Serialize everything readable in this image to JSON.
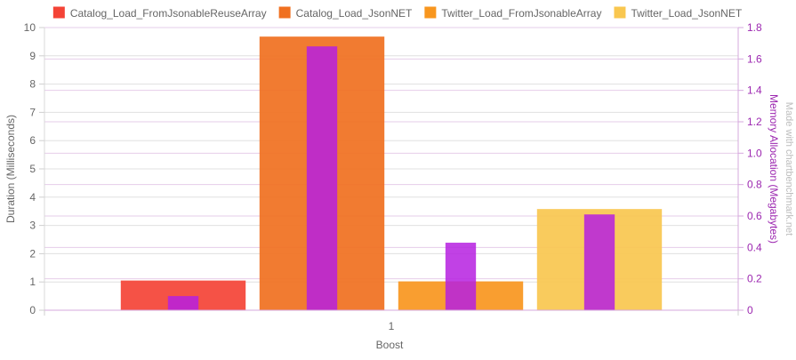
{
  "chart_data": {
    "type": "bar",
    "categories": [
      "1"
    ],
    "xlabel": "Boost",
    "ylabel": "Duration (Milliseconds)",
    "ylabel_right": "Memory Allocation (Megabytes)",
    "ylim": [
      0,
      10
    ],
    "ylim_right": [
      0,
      1.8
    ],
    "y_ticks": [
      "0",
      "1",
      "2",
      "3",
      "4",
      "5",
      "6",
      "7",
      "8",
      "9",
      "10"
    ],
    "y_ticks_right": [
      "0",
      "0.2",
      "0.4",
      "0.6",
      "0.8",
      "1.0",
      "1.2",
      "1.4",
      "1.6",
      "1.8"
    ],
    "legend_position": "top",
    "grid": true,
    "series": [
      {
        "name": "Catalog_Load_FromJsonableReuseArray",
        "color": "#f44336",
        "duration": [
          1.05
        ],
        "memory": [
          0.09
        ]
      },
      {
        "name": "Catalog_Load_JsonNET",
        "color": "#f07020",
        "duration": [
          9.68
        ],
        "memory": [
          1.68
        ]
      },
      {
        "name": "Twitter_Load_FromJsonableArray",
        "color": "#f8961e",
        "duration": [
          1.02
        ],
        "memory": [
          0.43
        ]
      },
      {
        "name": "Twitter_Load_JsonNET",
        "color": "#f9c74f",
        "duration": [
          3.58
        ],
        "memory": [
          0.61
        ]
      }
    ],
    "memory_color": "#b620e0",
    "watermark": "Made with chartbenchmark.net"
  }
}
